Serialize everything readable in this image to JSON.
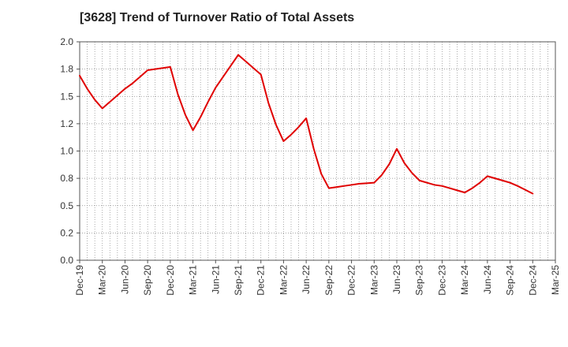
{
  "title": "[3628]  Trend of Turnover Ratio of Total Assets",
  "colors": {
    "line": "#e00000",
    "grid": "#888888",
    "axis": "#555555",
    "background": "#ffffff"
  },
  "chart_data": {
    "type": "line",
    "title": "[3628]  Trend of Turnover Ratio of Total Assets",
    "xlabel": "",
    "ylabel": "",
    "ylim": [
      0.0,
      2.0
    ],
    "yticks": [
      0.0,
      0.25,
      0.5,
      0.75,
      1.0,
      1.25,
      1.5,
      1.75,
      2.0
    ],
    "ytick_labels": [
      "0.0",
      "0.2",
      "0.5",
      "0.8",
      "1.0",
      "1.2",
      "1.5",
      "1.8",
      "2.0"
    ],
    "xtick_labels": [
      "Dec-19",
      "Mar-20",
      "Jun-20",
      "Sep-20",
      "Dec-20",
      "Mar-21",
      "Jun-21",
      "Sep-21",
      "Dec-21",
      "Mar-22",
      "Jun-22",
      "Sep-22",
      "Dec-22",
      "Mar-23",
      "Jun-23",
      "Sep-23",
      "Dec-23",
      "Mar-24",
      "Jun-24",
      "Sep-24",
      "Dec-24",
      "Mar-25"
    ],
    "grid": true,
    "legend": "none",
    "series": [
      {
        "x": [
          "Dec-19",
          "Jan-20",
          "Feb-20",
          "Mar-20",
          "Apr-20",
          "May-20",
          "Jun-20",
          "Jul-20",
          "Aug-20",
          "Sep-20",
          "Oct-20",
          "Nov-20",
          "Dec-20",
          "Jan-21",
          "Feb-21",
          "Mar-21",
          "Apr-21",
          "May-21",
          "Jun-21",
          "Jul-21",
          "Aug-21",
          "Sep-21",
          "Oct-21",
          "Nov-21",
          "Dec-21",
          "Jan-22",
          "Feb-22",
          "Mar-22",
          "Apr-22",
          "May-22",
          "Jun-22",
          "Jul-22",
          "Aug-22",
          "Sep-22",
          "Oct-22",
          "Nov-22",
          "Dec-22",
          "Jan-23",
          "Feb-23",
          "Mar-23",
          "Apr-23",
          "May-23",
          "Jun-23",
          "Jul-23",
          "Aug-23",
          "Sep-23",
          "Oct-23",
          "Nov-23",
          "Dec-23",
          "Jan-24",
          "Feb-24",
          "Mar-24",
          "Apr-24",
          "May-24",
          "Jun-24",
          "Jul-24",
          "Aug-24",
          "Sep-24",
          "Oct-24",
          "Nov-24",
          "Dec-24"
        ],
        "values": [
          1.69,
          1.57,
          1.47,
          1.39,
          1.45,
          1.51,
          1.57,
          1.62,
          1.68,
          1.74,
          1.75,
          1.76,
          1.77,
          1.52,
          1.33,
          1.19,
          1.31,
          1.45,
          1.58,
          1.68,
          1.78,
          1.88,
          1.82,
          1.76,
          1.7,
          1.44,
          1.24,
          1.09,
          1.15,
          1.22,
          1.3,
          1.02,
          0.79,
          0.66,
          0.67,
          0.68,
          0.69,
          0.7,
          0.705,
          0.71,
          0.78,
          0.88,
          1.02,
          0.89,
          0.8,
          0.73,
          0.71,
          0.69,
          0.68,
          0.66,
          0.64,
          0.62,
          0.66,
          0.71,
          0.77,
          0.75,
          0.73,
          0.71,
          0.68,
          0.645,
          0.61
        ]
      }
    ]
  }
}
